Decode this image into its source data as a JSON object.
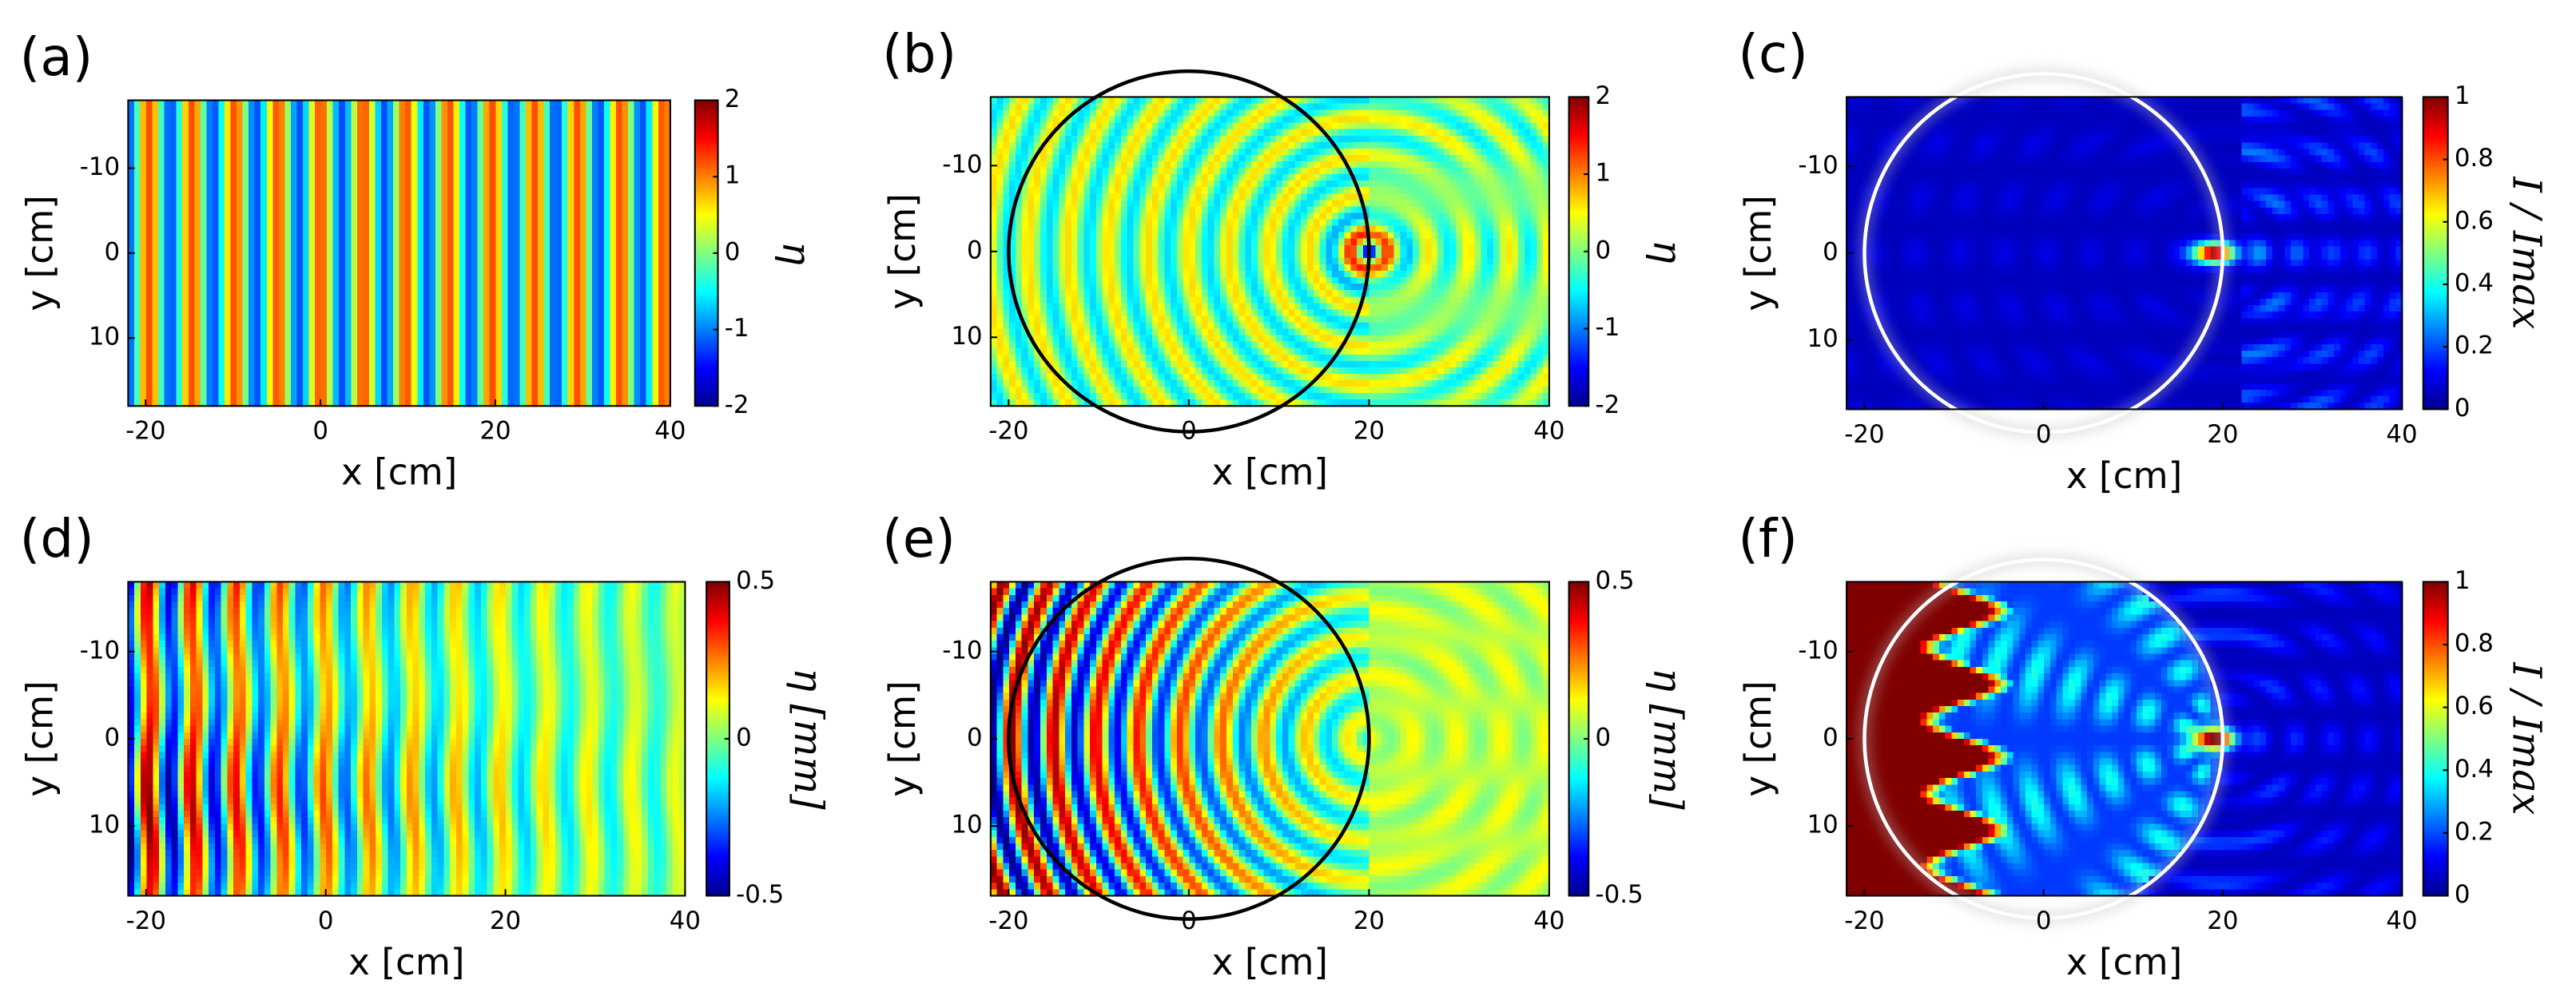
{
  "chart_data": [
    {
      "type": "heatmap",
      "panel_label": "(a)",
      "xlabel": "x [cm]",
      "ylabel": "y [cm]",
      "xlim": [
        -22,
        40
      ],
      "xticks": [
        -20,
        0,
        20,
        40
      ],
      "ylim": [
        -18,
        18
      ],
      "yticks": [
        -10,
        0,
        10
      ],
      "yreverse": true,
      "clim": [
        -2,
        2
      ],
      "cticks": [
        -2,
        -1,
        0,
        1,
        2
      ],
      "clabel": "η"
    },
    {
      "type": "heatmap",
      "panel_label": "(b)",
      "xlabel": "x [cm]",
      "ylabel": "y [cm]",
      "xlim": [
        -22,
        40
      ],
      "xticks": [
        -20,
        0,
        20,
        40
      ],
      "ylim": [
        -18,
        18
      ],
      "yticks": [
        -10,
        0,
        10
      ],
      "yreverse": true,
      "clim": [
        -2,
        2
      ],
      "cticks": [
        -2,
        -1,
        0,
        1,
        2
      ],
      "clabel": "η",
      "circle": {
        "x": 0,
        "y": 0,
        "r": 20,
        "color": "#000000"
      }
    },
    {
      "type": "heatmap",
      "panel_label": "(c)",
      "xlabel": "x [cm]",
      "ylabel": "y [cm]",
      "xlim": [
        -22,
        40
      ],
      "xticks": [
        -20,
        0,
        20,
        40
      ],
      "ylim": [
        -18,
        18
      ],
      "yticks": [
        -10,
        0,
        10
      ],
      "yreverse": true,
      "clim": [
        0,
        1
      ],
      "cticks": [
        0,
        0.2,
        0.4,
        0.6,
        0.8,
        1
      ],
      "clabel": "I / Imax",
      "circle": {
        "x": 0,
        "y": 0,
        "r": 20,
        "color": "#ffffff"
      }
    },
    {
      "type": "heatmap",
      "panel_label": "(d)",
      "xlabel": "x [cm]",
      "ylabel": "y [cm]",
      "xlim": [
        -22,
        40
      ],
      "xticks": [
        -20,
        0,
        20,
        40
      ],
      "ylim": [
        -18,
        18
      ],
      "yticks": [
        -10,
        0,
        10
      ],
      "yreverse": true,
      "clim": [
        -0.5,
        0.5
      ],
      "cticks": [
        -0.5,
        0,
        0.5
      ],
      "clabel": "η [mm]"
    },
    {
      "type": "heatmap",
      "panel_label": "(e)",
      "xlabel": "x [cm]",
      "ylabel": "y [cm]",
      "xlim": [
        -22,
        40
      ],
      "xticks": [
        -20,
        0,
        20,
        40
      ],
      "ylim": [
        -18,
        18
      ],
      "yticks": [
        -10,
        0,
        10
      ],
      "yreverse": true,
      "clim": [
        -0.5,
        0.5
      ],
      "cticks": [
        -0.5,
        0,
        0.5
      ],
      "clabel": "η [mm]",
      "circle": {
        "x": 0,
        "y": 0,
        "r": 20,
        "color": "#000000"
      }
    },
    {
      "type": "heatmap",
      "panel_label": "(f)",
      "xlabel": "x [cm]",
      "ylabel": "y [cm]",
      "xlim": [
        -22,
        40
      ],
      "xticks": [
        -20,
        0,
        20,
        40
      ],
      "ylim": [
        -18,
        18
      ],
      "yticks": [
        -10,
        0,
        10
      ],
      "yreverse": true,
      "clim": [
        0,
        1
      ],
      "cticks": [
        0,
        0.2,
        0.4,
        0.6,
        0.8,
        1
      ],
      "clabel": "I / Imax",
      "circle": {
        "x": 0,
        "y": 0,
        "r": 20,
        "color": "#ffffff"
      }
    }
  ]
}
